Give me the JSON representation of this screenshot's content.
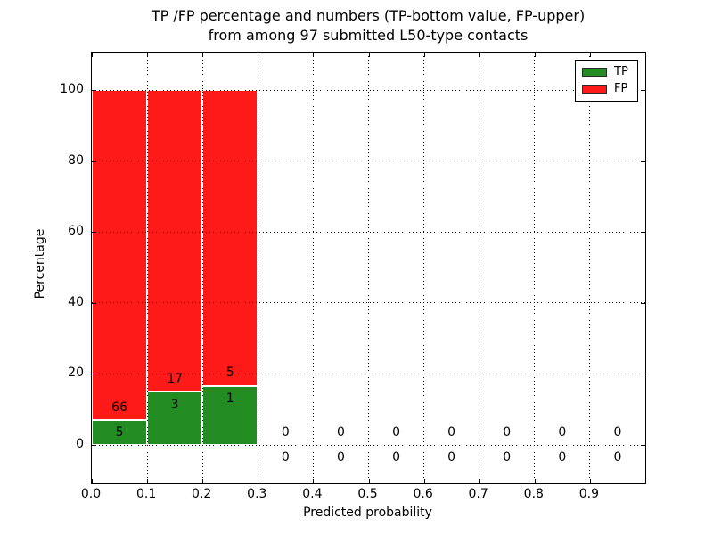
{
  "figure": {
    "title_line1": "TP /FP percentage and numbers (TP-bottom value, FP-upper)",
    "title_line2": "from among 97 submitted L50-type contacts",
    "xlabel": "Predicted probability",
    "ylabel": "Percentage"
  },
  "legend": {
    "position": "upper right",
    "items": [
      {
        "label": "TP",
        "color": "#228b22"
      },
      {
        "label": "FP",
        "color": "#fe1a18"
      }
    ]
  },
  "chart_data": {
    "type": "bar",
    "stacked": true,
    "normalized_to": 100,
    "title": "TP /FP percentage and numbers (TP-bottom value, FP-upper)\nfrom among 97 submitted L50-type contacts",
    "xlabel": "Predicted probability",
    "ylabel": "Percentage",
    "total_contacts": 97,
    "xlim": [
      0.0,
      1.0
    ],
    "ylim": [
      -10.8,
      110.5
    ],
    "grid": "dotted",
    "bin_width": 0.1,
    "bin_centers": [
      0.05,
      0.15,
      0.25,
      0.35,
      0.45,
      0.55,
      0.65,
      0.75,
      0.85,
      0.95
    ],
    "xticks": [
      "0.0",
      "0.1",
      "0.2",
      "0.3",
      "0.4",
      "0.5",
      "0.6",
      "0.7",
      "0.8",
      "0.9"
    ],
    "yticks": [
      0,
      20,
      40,
      60,
      80,
      100
    ],
    "series": [
      {
        "name": "TP",
        "color": "#228b22",
        "counts": [
          5,
          3,
          1,
          0,
          0,
          0,
          0,
          0,
          0,
          0
        ],
        "pct": [
          7.04,
          15.0,
          16.67,
          0,
          0,
          0,
          0,
          0,
          0,
          0
        ]
      },
      {
        "name": "FP",
        "color": "#fe1a18",
        "counts": [
          66,
          17,
          5,
          0,
          0,
          0,
          0,
          0,
          0,
          0
        ],
        "pct": [
          92.96,
          85.0,
          83.33,
          0,
          0,
          0,
          0,
          0,
          0,
          0
        ]
      }
    ],
    "annotation_rule": "FP count printed above TP-bar top, TP count printed below it; empty bins show 0 above and 0 below the zero line"
  }
}
